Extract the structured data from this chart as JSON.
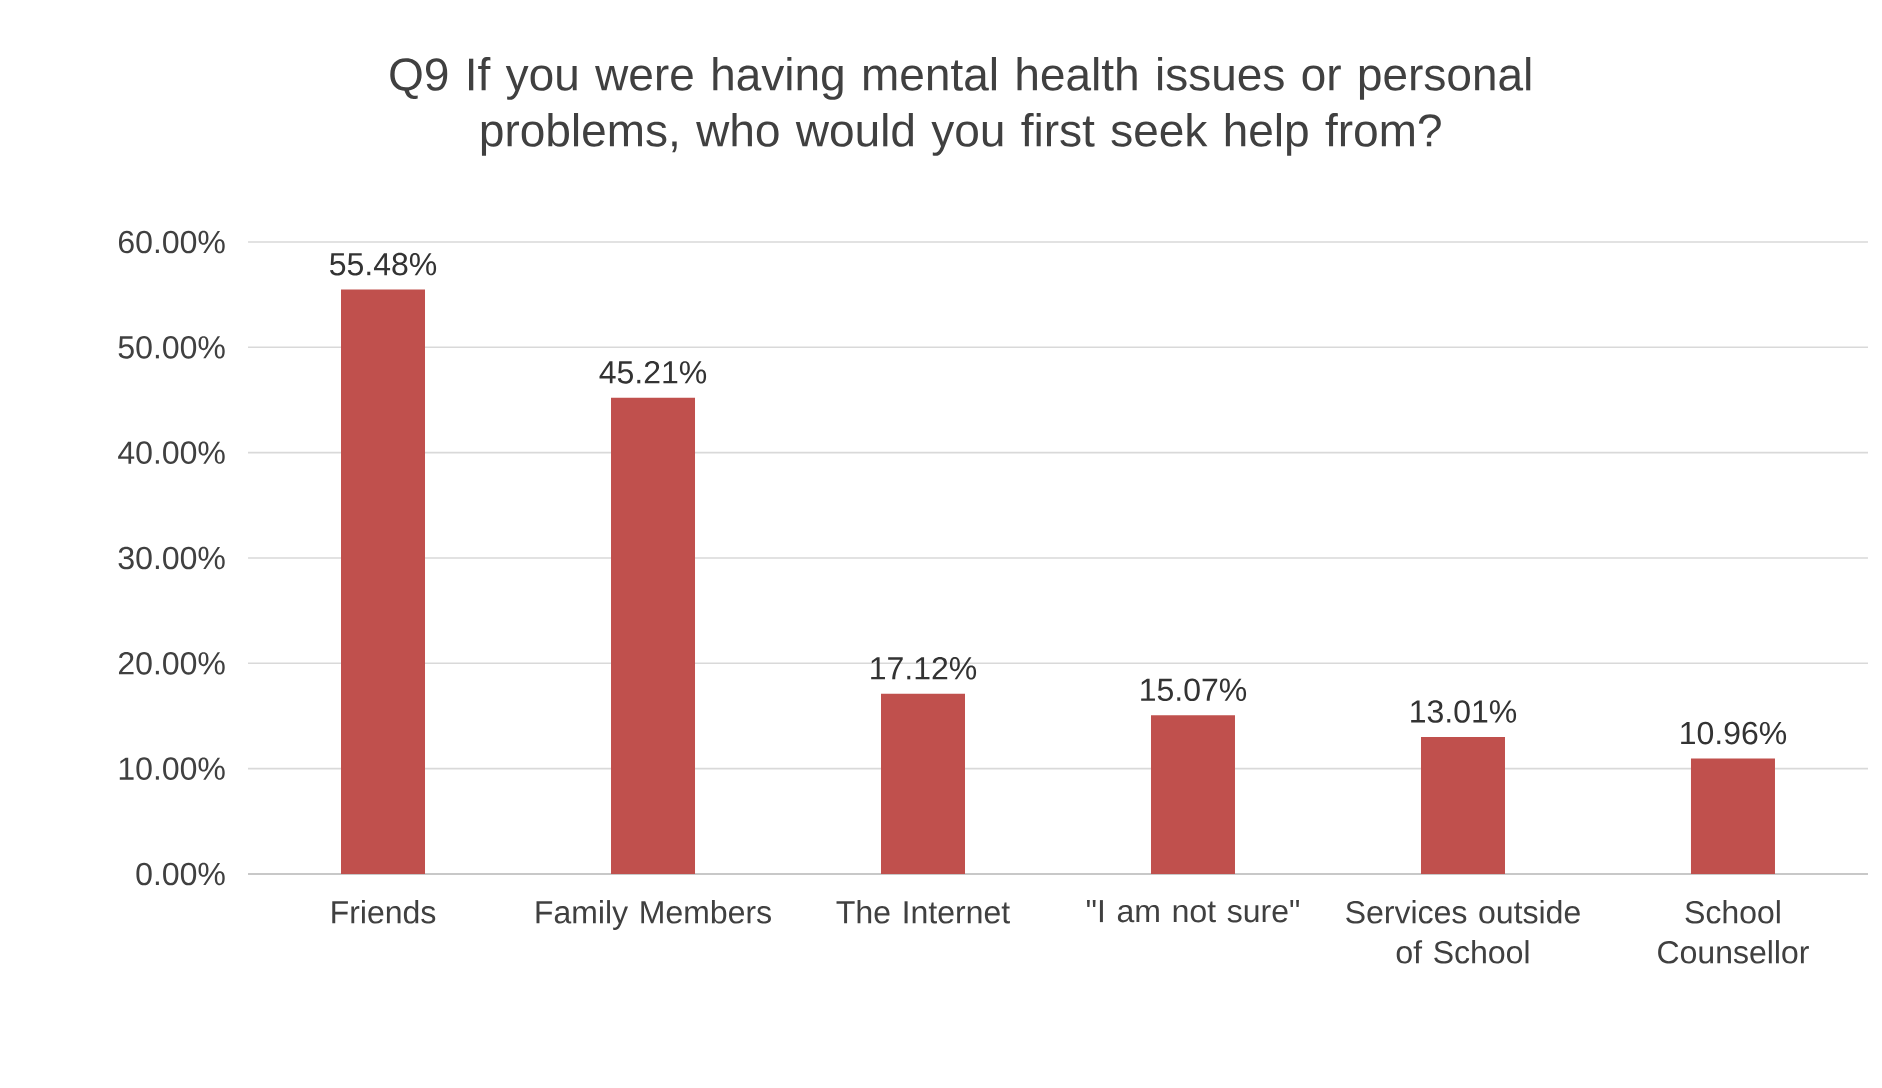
{
  "chart_data": {
    "type": "bar",
    "title": "Q9 If you were having mental health issues or personal problems, who would you first seek help from?",
    "categories": [
      "Friends",
      "Family Members",
      "The Internet",
      "\"I am not sure\"",
      "Services outside of School",
      "School Counsellor"
    ],
    "values": [
      55.48,
      45.21,
      17.12,
      15.07,
      13.01,
      10.96
    ],
    "value_labels": [
      "55.48%",
      "45.21%",
      "17.12%",
      "15.07%",
      "13.01%",
      "10.96%"
    ],
    "color": "#c0504d",
    "ylim": [
      0,
      60
    ],
    "yticks": [
      {
        "value": 0,
        "label": "0.00%"
      },
      {
        "value": 10,
        "label": "10.00%"
      },
      {
        "value": 20,
        "label": "20.00%"
      },
      {
        "value": 30,
        "label": "30.00%"
      },
      {
        "value": 40,
        "label": "40.00%"
      },
      {
        "value": 50,
        "label": "50.00%"
      },
      {
        "value": 60,
        "label": "60.00%"
      }
    ],
    "grid": "y"
  }
}
